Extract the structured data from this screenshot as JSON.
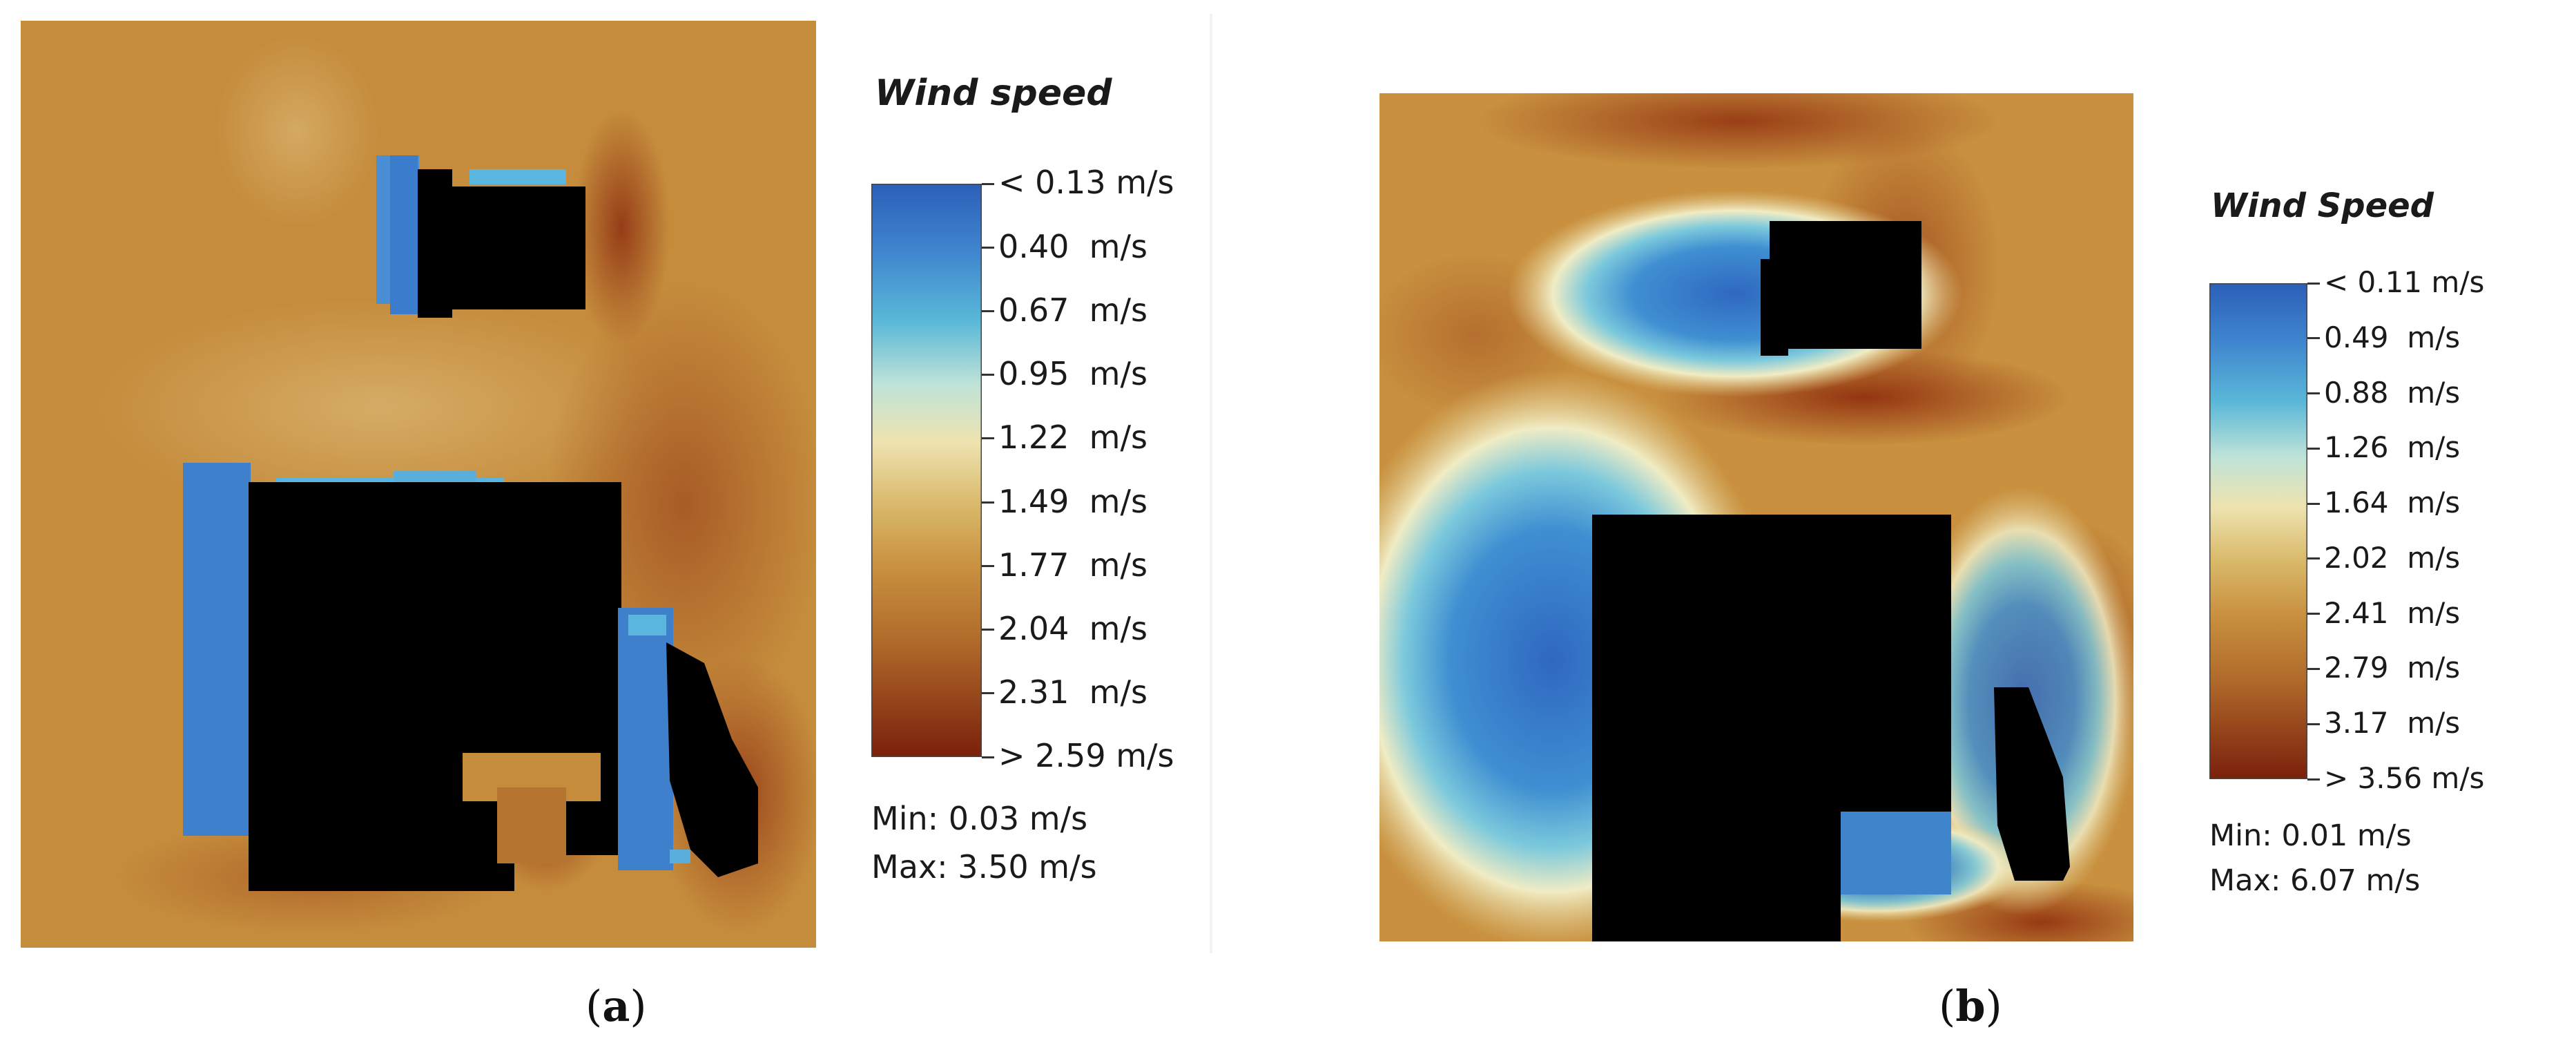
{
  "chart_data": [
    {
      "type": "heatmap",
      "panel_label": "a",
      "title": "Wind speed",
      "colorbar_ticks": [
        "< 0.13 m/s",
        "0.40  m/s",
        "0.67  m/s",
        "0.95  m/s",
        "1.22  m/s",
        "1.49  m/s",
        "1.77  m/s",
        "2.04  m/s",
        "2.31  m/s",
        "> 2.59 m/s"
      ],
      "colorbar_values": [
        0.13,
        0.4,
        0.67,
        0.95,
        1.22,
        1.49,
        1.77,
        2.04,
        2.31,
        2.59
      ],
      "min_label": "Min: 0.03 m/s",
      "max_label": "Max: 3.50 m/s",
      "min_value": 0.03,
      "max_value": 3.5,
      "colors": {
        "low": "#2f6cc4",
        "mid": "#e9dca0",
        "high": "#7a200c",
        "building": "#000000",
        "background": "#c8903f"
      }
    },
    {
      "type": "heatmap",
      "panel_label": "b",
      "title": "Wind Speed",
      "colorbar_ticks": [
        "< 0.11 m/s",
        "0.49  m/s",
        "0.88  m/s",
        "1.26  m/s",
        "1.64  m/s",
        "2.02  m/s",
        "2.41  m/s",
        "2.79  m/s",
        "3.17  m/s",
        "> 3.56 m/s"
      ],
      "colorbar_values": [
        0.11,
        0.49,
        0.88,
        1.26,
        1.64,
        2.02,
        2.41,
        2.79,
        3.17,
        3.56
      ],
      "min_label": "Min: 0.01 m/s",
      "max_label": "Max: 6.07 m/s",
      "min_value": 0.01,
      "max_value": 6.07,
      "colors": {
        "low": "#2f6cc4",
        "mid": "#e9dca0",
        "high": "#7a200c",
        "building": "#000000",
        "background": "#c8903f"
      }
    }
  ],
  "captions": {
    "a": "a",
    "b": "b"
  }
}
